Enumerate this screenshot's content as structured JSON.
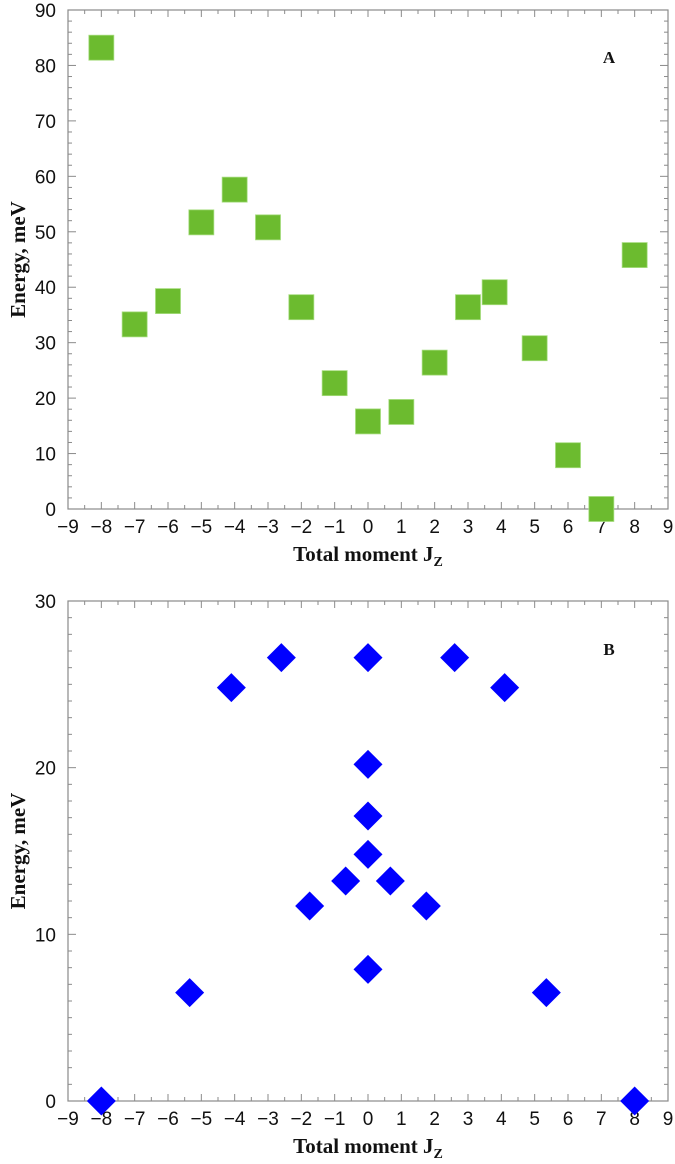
{
  "chart_data": [
    {
      "type": "scatter",
      "panel_label": "A",
      "title": "",
      "xlabel": "Total moment J",
      "xlabel_subscript": "Z",
      "ylabel": "Energy, meV",
      "xlim": [
        -9,
        9
      ],
      "ylim": [
        0,
        90
      ],
      "x_ticks": [
        -9,
        -8,
        -7,
        -6,
        -5,
        -4,
        -3,
        -2,
        -1,
        0,
        1,
        2,
        3,
        4,
        5,
        6,
        7,
        8,
        9
      ],
      "x_tick_labels": [
        "−9",
        "−8",
        "−7",
        "−6",
        "−5",
        "−4",
        "−3",
        "−2",
        "−1",
        "0",
        "1",
        "2",
        "3",
        "4",
        "5",
        "6",
        "7",
        "8",
        "9"
      ],
      "y_ticks": [
        0,
        10,
        20,
        30,
        40,
        50,
        60,
        70,
        80,
        90
      ],
      "y_minor_step": 1,
      "grid": false,
      "marker": "square",
      "color": "#6cbb2f",
      "series": [
        {
          "name": "A",
          "points": [
            {
              "x": -8,
              "y": 83.2
            },
            {
              "x": -7,
              "y": 33.3
            },
            {
              "x": -6,
              "y": 37.5
            },
            {
              "x": -5,
              "y": 51.7
            },
            {
              "x": -4,
              "y": 57.6
            },
            {
              "x": -3,
              "y": 50.8
            },
            {
              "x": -2,
              "y": 36.4
            },
            {
              "x": -1,
              "y": 22.7
            },
            {
              "x": 0,
              "y": 15.8
            },
            {
              "x": 1,
              "y": 17.5
            },
            {
              "x": 2,
              "y": 26.4
            },
            {
              "x": 3,
              "y": 36.4
            },
            {
              "x": 3.8,
              "y": 39.1
            },
            {
              "x": 5,
              "y": 29.0
            },
            {
              "x": 6,
              "y": 9.7
            },
            {
              "x": 7,
              "y": 0
            },
            {
              "x": 8,
              "y": 45.8
            }
          ]
        }
      ]
    },
    {
      "type": "scatter",
      "panel_label": "B",
      "title": "",
      "xlabel": "Total moment J",
      "xlabel_subscript": "Z",
      "ylabel": "Energy, meV",
      "xlim": [
        -9,
        9
      ],
      "ylim": [
        0,
        30
      ],
      "x_ticks": [
        -9,
        -8,
        -7,
        -6,
        -5,
        -4,
        -3,
        -2,
        -1,
        0,
        1,
        2,
        3,
        4,
        5,
        6,
        7,
        8,
        9
      ],
      "x_tick_labels": [
        "−9",
        "−8",
        "−7",
        "−6",
        "−5",
        "−4",
        "−3",
        "−2",
        "−1",
        "0",
        "1",
        "2",
        "3",
        "4",
        "5",
        "6",
        "7",
        "8",
        "9"
      ],
      "y_ticks": [
        0,
        10,
        20,
        30
      ],
      "y_minor_step": 1,
      "grid": false,
      "marker": "diamond",
      "color": "#0000ff",
      "series": [
        {
          "name": "B",
          "points": [
            {
              "x": -8,
              "y": 0
            },
            {
              "x": -5.35,
              "y": 6.5
            },
            {
              "x": -4.1,
              "y": 24.8
            },
            {
              "x": -2.6,
              "y": 26.6
            },
            {
              "x": -1.75,
              "y": 11.7
            },
            {
              "x": -0.67,
              "y": 13.2
            },
            {
              "x": 0,
              "y": 7.9
            },
            {
              "x": 0,
              "y": 14.8
            },
            {
              "x": 0,
              "y": 17.1
            },
            {
              "x": 0,
              "y": 20.2
            },
            {
              "x": 0,
              "y": 26.6
            },
            {
              "x": 0.67,
              "y": 13.2
            },
            {
              "x": 1.75,
              "y": 11.7
            },
            {
              "x": 2.6,
              "y": 26.6
            },
            {
              "x": 4.1,
              "y": 24.8
            },
            {
              "x": 5.35,
              "y": 6.5
            },
            {
              "x": 8,
              "y": 0
            }
          ]
        }
      ]
    }
  ]
}
